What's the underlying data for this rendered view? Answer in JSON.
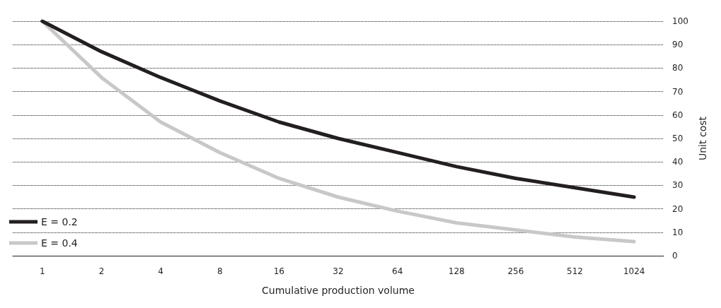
{
  "chart_data": {
    "type": "line",
    "xlabel": "Cumulative production volume",
    "ylabel": "Unit cost",
    "categories": [
      "1",
      "2",
      "4",
      "8",
      "16",
      "32",
      "64",
      "128",
      "256",
      "512",
      "1024"
    ],
    "series": [
      {
        "name": "E = 0.2",
        "color": "#231f20",
        "values": [
          100,
          87,
          76,
          66,
          57,
          50,
          44,
          38,
          33,
          29,
          25
        ]
      },
      {
        "name": "E = 0.4",
        "color": "#c8c8c8",
        "values": [
          100,
          76,
          57,
          44,
          33,
          25,
          19,
          14,
          11,
          8,
          6
        ]
      }
    ],
    "ylim": [
      0,
      100
    ],
    "yticks": [
      0,
      10,
      20,
      30,
      40,
      50,
      60,
      70,
      80,
      90,
      100
    ],
    "grid": "y",
    "line_style": "solid",
    "marker": "none",
    "legend": "bottom left"
  }
}
